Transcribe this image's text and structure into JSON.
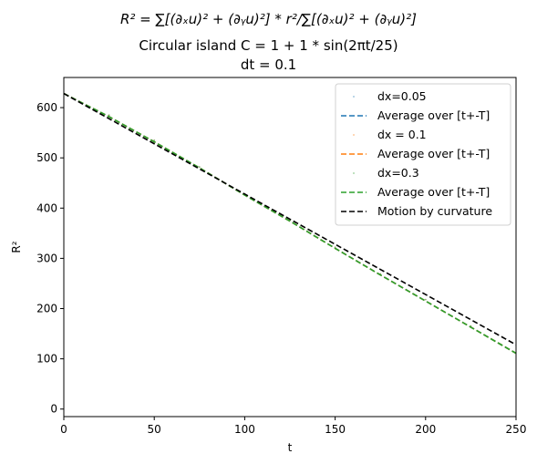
{
  "chart_data": {
    "type": "line",
    "title_lines": [
      "R² = ∑[(∂ₓu)² + (∂ᵧu)²] * r²/∑[(∂ₓu)² + (∂ᵧu)²]",
      "Circular island C = 1 + 1 * sin(2πt/25)",
      "dt = 0.1"
    ],
    "xlabel": "t",
    "ylabel": "R²",
    "xlim": [
      0,
      250
    ],
    "ylim": [
      -15,
      660
    ],
    "xticks": [
      0,
      50,
      100,
      150,
      200,
      250
    ],
    "yticks": [
      0,
      100,
      200,
      300,
      400,
      500,
      600
    ],
    "legend_position": "top-right",
    "x": [
      0,
      25,
      50,
      75,
      100,
      125,
      150,
      175,
      200,
      225,
      250
    ],
    "series": [
      {
        "name": "dx=0.05",
        "style": "dots",
        "color": "#1f77b4",
        "values": [
          628,
          585,
          535,
          482,
          428,
          376,
          322,
          269,
          218,
          165,
          112
        ]
      },
      {
        "name": "Average over [t+-T]",
        "style": "dashed",
        "color": "#1f77b4",
        "values": [
          628,
          582,
          532,
          480,
          426,
          374,
          320,
          267,
          215,
          163,
          111
        ]
      },
      {
        "name": "dx = 0.1",
        "style": "dots",
        "color": "#ff7f0e",
        "values": [
          628,
          585,
          535,
          482,
          428,
          376,
          322,
          269,
          218,
          165,
          112
        ]
      },
      {
        "name": "Average over [t+-T]",
        "style": "dashed",
        "color": "#ff7f0e",
        "values": [
          628,
          582,
          532,
          480,
          426,
          374,
          320,
          267,
          215,
          163,
          111
        ]
      },
      {
        "name": "dx=0.3",
        "style": "dots",
        "color": "#2ca02c",
        "values": [
          628,
          585,
          535,
          482,
          428,
          376,
          322,
          269,
          218,
          165,
          112
        ]
      },
      {
        "name": "Average over [t+-T]",
        "style": "dashed",
        "color": "#2ca02c",
        "values": [
          628,
          582,
          532,
          480,
          426,
          374,
          320,
          267,
          215,
          163,
          111
        ]
      },
      {
        "name": "Motion by curvature",
        "style": "dashed",
        "color": "#000000",
        "values": [
          628,
          578,
          528,
          478,
          428,
          378,
          328,
          278,
          228,
          178,
          128
        ]
      }
    ]
  }
}
